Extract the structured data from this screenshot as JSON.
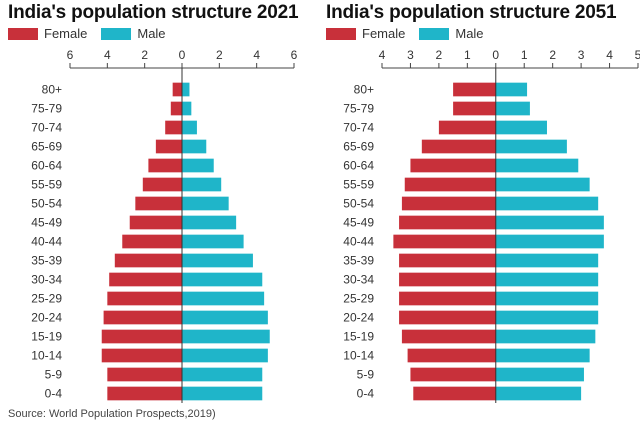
{
  "colors": {
    "female": "#c8303a",
    "male": "#1fb5c9"
  },
  "source": "Source: World Population Prospects,2019)",
  "chart_data": [
    {
      "type": "bar",
      "title": "India's population structure 2021",
      "legend": [
        {
          "label": "Female",
          "color": "#c8303a"
        },
        {
          "label": "Male",
          "color": "#1fb5c9"
        }
      ],
      "legend_placement": "top-left",
      "xlim": [
        -6,
        6
      ],
      "xticks": [
        "6",
        "4",
        "2",
        "0",
        "2",
        "4",
        "6"
      ],
      "grid": false,
      "categories": [
        "80+",
        "75-79",
        "70-74",
        "65-69",
        "60-64",
        "55-59",
        "50-54",
        "45-49",
        "40-44",
        "35-39",
        "30-34",
        "25-29",
        "20-24",
        "15-19",
        "10-14",
        "5-9",
        "0-4"
      ],
      "series": [
        {
          "name": "Female",
          "values": [
            0.5,
            0.6,
            0.9,
            1.4,
            1.8,
            2.1,
            2.5,
            2.8,
            3.2,
            3.6,
            3.9,
            4.0,
            4.2,
            4.3,
            4.3,
            4.0,
            4.0
          ]
        },
        {
          "name": "Male",
          "values": [
            0.4,
            0.5,
            0.8,
            1.3,
            1.7,
            2.1,
            2.5,
            2.9,
            3.3,
            3.8,
            4.3,
            4.4,
            4.6,
            4.7,
            4.6,
            4.3,
            4.3
          ]
        }
      ]
    },
    {
      "type": "bar",
      "title": "India's population structure 2051",
      "legend": [
        {
          "label": "Female",
          "color": "#c8303a"
        },
        {
          "label": "Male",
          "color": "#1fb5c9"
        }
      ],
      "legend_placement": "top-left",
      "xlim": [
        -4,
        5
      ],
      "xticks": [
        "4",
        "3",
        "2",
        "1",
        "0",
        "1",
        "2",
        "3",
        "4",
        "5"
      ],
      "grid": false,
      "categories": [
        "80+",
        "75-79",
        "70-74",
        "65-69",
        "60-64",
        "55-59",
        "50-54",
        "45-49",
        "40-44",
        "35-39",
        "30-34",
        "25-29",
        "20-24",
        "15-19",
        "10-14",
        "5-9",
        "0-4"
      ],
      "series": [
        {
          "name": "Female",
          "values": [
            1.5,
            1.5,
            2.0,
            2.6,
            3.0,
            3.2,
            3.3,
            3.4,
            3.6,
            3.4,
            3.4,
            3.4,
            3.4,
            3.3,
            3.1,
            3.0,
            2.9
          ]
        },
        {
          "name": "Male",
          "values": [
            1.1,
            1.2,
            1.8,
            2.5,
            2.9,
            3.3,
            3.6,
            3.8,
            3.8,
            3.6,
            3.6,
            3.6,
            3.6,
            3.5,
            3.3,
            3.1,
            3.0
          ]
        }
      ]
    }
  ]
}
